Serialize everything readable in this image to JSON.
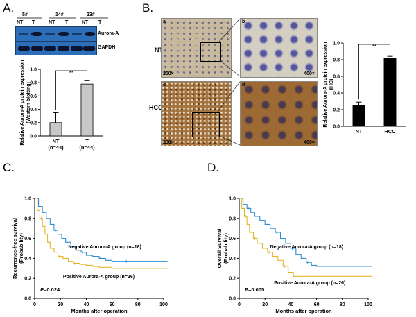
{
  "panels": {
    "a": {
      "letter": "A.",
      "sample_ids": [
        "5#",
        "14#",
        "23#"
      ],
      "lane_labels": [
        "NT",
        "T",
        "NT",
        "T",
        "NT",
        "T"
      ],
      "blot_labels": [
        "Aurora-A",
        "GAPDH"
      ],
      "significance": "**"
    },
    "b": {
      "letter": "B.",
      "tissue_labels": [
        "NT",
        "HCC"
      ],
      "subpanel_letters": [
        "a",
        "b",
        "c",
        "d"
      ],
      "magnifications": [
        "200×",
        "400×",
        "200×",
        "400×"
      ],
      "significance": "**"
    },
    "c": {
      "letter": "C."
    },
    "d": {
      "letter": "D."
    }
  },
  "chart_data": [
    {
      "id": "western-bar",
      "type": "bar",
      "categories": [
        "NT",
        "T"
      ],
      "category_sublabels": [
        "(n=44)",
        "(n=44)"
      ],
      "values": [
        0.2,
        0.78
      ],
      "errors": [
        0.15,
        0.05
      ],
      "ylabel": "Relative Aurora-A protein expression (Western blotting)",
      "ylim": [
        0,
        1.0
      ],
      "yticks": [
        "0.0",
        "0.2",
        "0.4",
        "0.6",
        "0.8",
        "1.0"
      ],
      "bar_color": "#c8c8c8"
    },
    {
      "id": "ihc-bar",
      "type": "bar",
      "categories": [
        "NT",
        "HCC"
      ],
      "values": [
        0.25,
        0.82
      ],
      "errors": [
        0.04,
        0.02
      ],
      "ylabel": "Relative Aurora-A protein expression (IHC)",
      "ylim": [
        0,
        1.0
      ],
      "yticks": [
        "0.0",
        "0.2",
        "0.4",
        "0.6",
        "0.8",
        "1.0"
      ],
      "bar_color": "#000000"
    },
    {
      "id": "rfs-km",
      "type": "line",
      "ylabel": "Recurrence-free survival (Probability)",
      "xlabel": "Months after operation",
      "xlim": [
        0,
        100
      ],
      "ylim": [
        0,
        1.0
      ],
      "xticks": [
        "0",
        "20",
        "40",
        "60",
        "80",
        "100"
      ],
      "yticks": [
        "0.0",
        "0.2",
        "0.4",
        "0.6",
        "0.8",
        "1.0"
      ],
      "p_label": "P",
      "p_value": "=0.024",
      "series": [
        {
          "name": "Negative Aurora-A group (n=18)",
          "color": "#2f8ed1",
          "x": [
            0,
            3,
            6,
            9,
            12,
            15,
            18,
            21,
            24,
            28,
            32,
            36,
            40,
            45,
            50,
            55,
            60,
            70,
            103
          ],
          "y": [
            1.0,
            0.92,
            0.86,
            0.8,
            0.74,
            0.68,
            0.64,
            0.6,
            0.56,
            0.52,
            0.48,
            0.46,
            0.43,
            0.42,
            0.4,
            0.38,
            0.37,
            0.37,
            0.37
          ]
        },
        {
          "name": "Positive Aurora-A group (n=26)",
          "color": "#e5b52a",
          "x": [
            0,
            2,
            4,
            6,
            8,
            10,
            12,
            15,
            18,
            22,
            26,
            30,
            35,
            40,
            45,
            50,
            60,
            103
          ],
          "y": [
            1.0,
            0.88,
            0.8,
            0.72,
            0.64,
            0.56,
            0.5,
            0.46,
            0.42,
            0.4,
            0.37,
            0.35,
            0.34,
            0.33,
            0.32,
            0.31,
            0.3,
            0.3
          ]
        }
      ]
    },
    {
      "id": "os-km",
      "type": "line",
      "ylabel": "Overall Survival (Probability)",
      "xlabel": "Months after operation",
      "xlim": [
        0,
        100
      ],
      "ylim": [
        0,
        1.0
      ],
      "xticks": [
        "0",
        "20",
        "40",
        "60",
        "80",
        "100"
      ],
      "yticks": [
        "0.0",
        "0.2",
        "0.4",
        "0.6",
        "0.8",
        "1.0"
      ],
      "p_label": "P",
      "p_value": "=0.005",
      "series": [
        {
          "name": "Negative Aurora-A group (n=18)",
          "color": "#2f8ed1",
          "x": [
            0,
            3,
            6,
            9,
            12,
            16,
            20,
            24,
            28,
            32,
            36,
            40,
            44,
            48,
            52,
            56,
            60,
            103
          ],
          "y": [
            1.0,
            0.94,
            0.9,
            0.86,
            0.82,
            0.78,
            0.74,
            0.7,
            0.66,
            0.6,
            0.55,
            0.5,
            0.44,
            0.4,
            0.36,
            0.33,
            0.32,
            0.32
          ]
        },
        {
          "name": "Positive Aurora-A group (n=26)",
          "color": "#e5b52a",
          "x": [
            0,
            2,
            4,
            6,
            8,
            11,
            14,
            18,
            22,
            26,
            30,
            34,
            38,
            42,
            103
          ],
          "y": [
            1.0,
            0.9,
            0.82,
            0.74,
            0.66,
            0.6,
            0.55,
            0.5,
            0.46,
            0.42,
            0.38,
            0.32,
            0.26,
            0.22,
            0.22
          ]
        }
      ]
    }
  ]
}
